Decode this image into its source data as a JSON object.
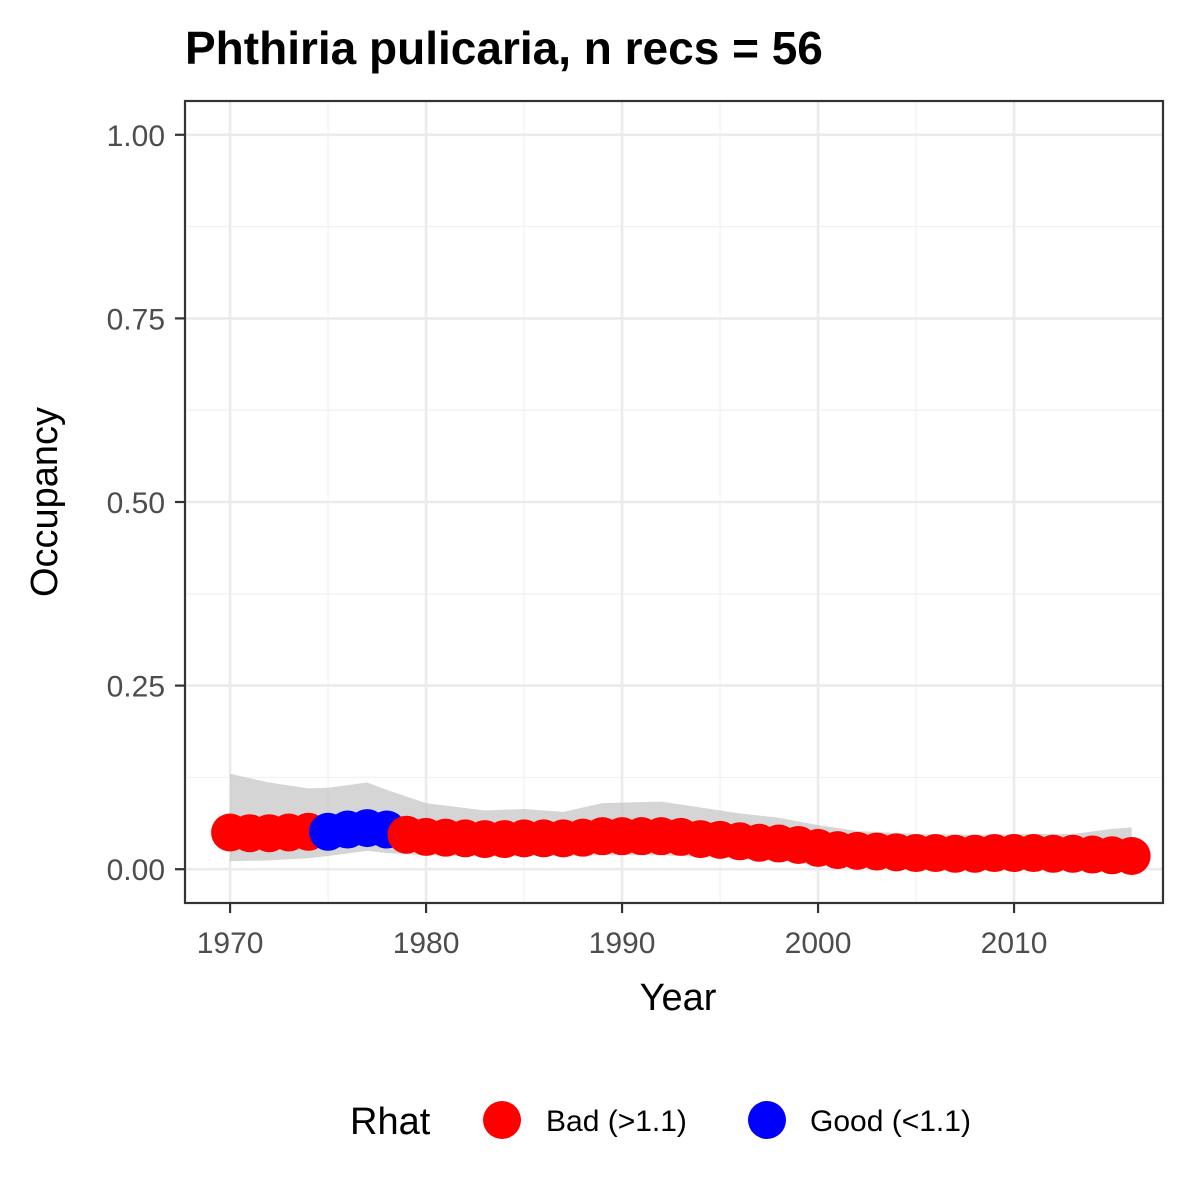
{
  "chart_data": {
    "type": "scatter",
    "title": "Phthiria pulicaria, n recs = 56",
    "xlabel": "Year",
    "ylabel": "Occupancy",
    "xlim": [
      1967.7,
      2017.6
    ],
    "ylim": [
      -0.046,
      1.046
    ],
    "x_ticks": [
      1970,
      1980,
      1990,
      2000,
      2010
    ],
    "x_tick_labels": [
      "1970",
      "1980",
      "1990",
      "2000",
      "2010"
    ],
    "y_ticks": [
      0,
      0.25,
      0.5,
      0.75,
      1.0
    ],
    "y_tick_labels": [
      "0.00",
      "0.25",
      "0.50",
      "0.75",
      "1.00"
    ],
    "grid": true,
    "legend_position": "bottom",
    "legend": {
      "title": "Rhat",
      "entries": [
        {
          "key": "bad",
          "label": "Bad (>1.1)",
          "color": "#ff0000"
        },
        {
          "key": "good",
          "label": "Good (<1.1)",
          "color": "#0000ff"
        }
      ]
    },
    "ribbon_color": "#bfbfbf",
    "points": [
      {
        "x": 1970,
        "y": 0.05,
        "rhat": "bad"
      },
      {
        "x": 1971,
        "y": 0.049,
        "rhat": "bad"
      },
      {
        "x": 1972,
        "y": 0.049,
        "rhat": "bad"
      },
      {
        "x": 1973,
        "y": 0.05,
        "rhat": "bad"
      },
      {
        "x": 1974,
        "y": 0.051,
        "rhat": "bad"
      },
      {
        "x": 1975,
        "y": 0.051,
        "rhat": "good"
      },
      {
        "x": 1976,
        "y": 0.054,
        "rhat": "good"
      },
      {
        "x": 1977,
        "y": 0.056,
        "rhat": "good"
      },
      {
        "x": 1978,
        "y": 0.054,
        "rhat": "good"
      },
      {
        "x": 1979,
        "y": 0.047,
        "rhat": "bad"
      },
      {
        "x": 1980,
        "y": 0.044,
        "rhat": "bad"
      },
      {
        "x": 1981,
        "y": 0.043,
        "rhat": "bad"
      },
      {
        "x": 1982,
        "y": 0.042,
        "rhat": "bad"
      },
      {
        "x": 1983,
        "y": 0.041,
        "rhat": "bad"
      },
      {
        "x": 1984,
        "y": 0.041,
        "rhat": "bad"
      },
      {
        "x": 1985,
        "y": 0.042,
        "rhat": "bad"
      },
      {
        "x": 1986,
        "y": 0.042,
        "rhat": "bad"
      },
      {
        "x": 1987,
        "y": 0.042,
        "rhat": "bad"
      },
      {
        "x": 1988,
        "y": 0.043,
        "rhat": "bad"
      },
      {
        "x": 1989,
        "y": 0.045,
        "rhat": "bad"
      },
      {
        "x": 1990,
        "y": 0.045,
        "rhat": "bad"
      },
      {
        "x": 1991,
        "y": 0.045,
        "rhat": "bad"
      },
      {
        "x": 1992,
        "y": 0.045,
        "rhat": "bad"
      },
      {
        "x": 1993,
        "y": 0.044,
        "rhat": "bad"
      },
      {
        "x": 1994,
        "y": 0.041,
        "rhat": "bad"
      },
      {
        "x": 1995,
        "y": 0.04,
        "rhat": "bad"
      },
      {
        "x": 1996,
        "y": 0.038,
        "rhat": "bad"
      },
      {
        "x": 1997,
        "y": 0.036,
        "rhat": "bad"
      },
      {
        "x": 1998,
        "y": 0.035,
        "rhat": "bad"
      },
      {
        "x": 1999,
        "y": 0.033,
        "rhat": "bad"
      },
      {
        "x": 2000,
        "y": 0.029,
        "rhat": "bad"
      },
      {
        "x": 2001,
        "y": 0.026,
        "rhat": "bad"
      },
      {
        "x": 2002,
        "y": 0.025,
        "rhat": "bad"
      },
      {
        "x": 2003,
        "y": 0.024,
        "rhat": "bad"
      },
      {
        "x": 2004,
        "y": 0.023,
        "rhat": "bad"
      },
      {
        "x": 2005,
        "y": 0.022,
        "rhat": "bad"
      },
      {
        "x": 2006,
        "y": 0.022,
        "rhat": "bad"
      },
      {
        "x": 2007,
        "y": 0.021,
        "rhat": "bad"
      },
      {
        "x": 2008,
        "y": 0.021,
        "rhat": "bad"
      },
      {
        "x": 2009,
        "y": 0.022,
        "rhat": "bad"
      },
      {
        "x": 2010,
        "y": 0.022,
        "rhat": "bad"
      },
      {
        "x": 2011,
        "y": 0.022,
        "rhat": "bad"
      },
      {
        "x": 2012,
        "y": 0.021,
        "rhat": "bad"
      },
      {
        "x": 2013,
        "y": 0.021,
        "rhat": "bad"
      },
      {
        "x": 2014,
        "y": 0.02,
        "rhat": "bad"
      },
      {
        "x": 2015,
        "y": 0.019,
        "rhat": "bad"
      },
      {
        "x": 2016,
        "y": 0.018,
        "rhat": "bad"
      }
    ],
    "ribbon": [
      {
        "x": 1970,
        "lo": 0.011,
        "hi": 0.13
      },
      {
        "x": 1972,
        "lo": 0.012,
        "hi": 0.118
      },
      {
        "x": 1974,
        "lo": 0.015,
        "hi": 0.11
      },
      {
        "x": 1975,
        "lo": 0.018,
        "hi": 0.111
      },
      {
        "x": 1977,
        "lo": 0.025,
        "hi": 0.118
      },
      {
        "x": 1978,
        "lo": 0.022,
        "hi": 0.108
      },
      {
        "x": 1980,
        "lo": 0.019,
        "hi": 0.09
      },
      {
        "x": 1983,
        "lo": 0.018,
        "hi": 0.08
      },
      {
        "x": 1985,
        "lo": 0.018,
        "hi": 0.082
      },
      {
        "x": 1987,
        "lo": 0.018,
        "hi": 0.078
      },
      {
        "x": 1989,
        "lo": 0.019,
        "hi": 0.09
      },
      {
        "x": 1992,
        "lo": 0.019,
        "hi": 0.092
      },
      {
        "x": 1994,
        "lo": 0.017,
        "hi": 0.084
      },
      {
        "x": 1996,
        "lo": 0.014,
        "hi": 0.076
      },
      {
        "x": 1998,
        "lo": 0.012,
        "hi": 0.07
      },
      {
        "x": 2000,
        "lo": 0.01,
        "hi": 0.06
      },
      {
        "x": 2002,
        "lo": 0.008,
        "hi": 0.052
      },
      {
        "x": 2005,
        "lo": 0.007,
        "hi": 0.048
      },
      {
        "x": 2008,
        "lo": 0.007,
        "hi": 0.047
      },
      {
        "x": 2011,
        "lo": 0.007,
        "hi": 0.048
      },
      {
        "x": 2013,
        "lo": 0.006,
        "hi": 0.048
      },
      {
        "x": 2015,
        "lo": 0.006,
        "hi": 0.055
      },
      {
        "x": 2016,
        "lo": 0.006,
        "hi": 0.057
      }
    ]
  }
}
